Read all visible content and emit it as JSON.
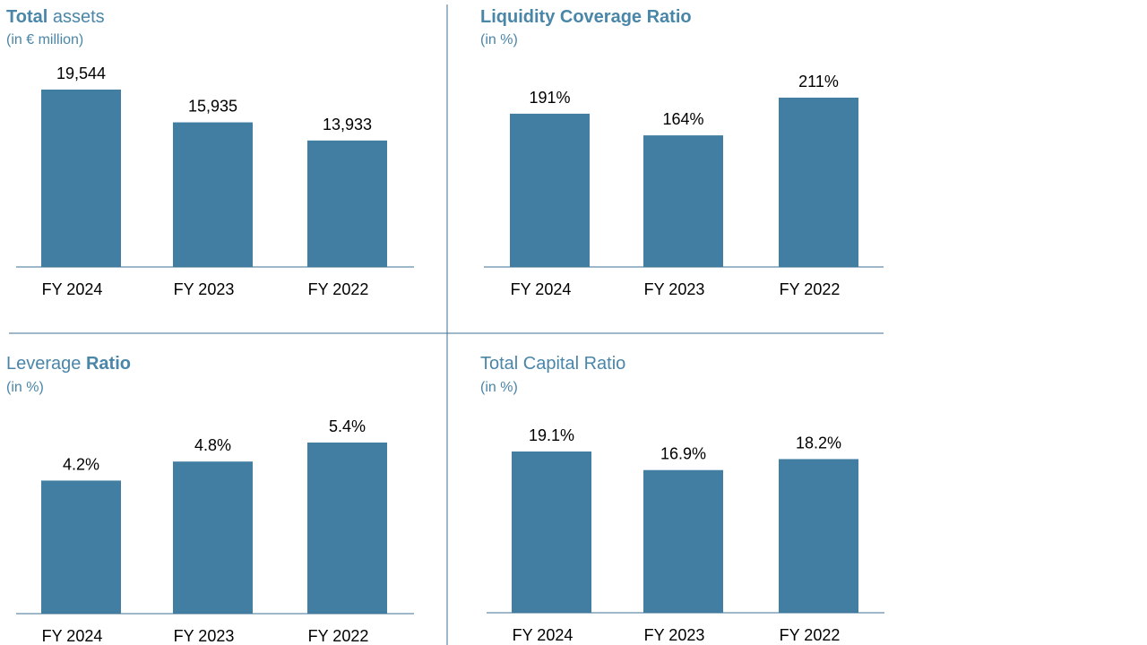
{
  "colors": {
    "bar": "#417ea1",
    "title": "#4a86a8",
    "axis": "#3e7195"
  },
  "chart_data": [
    {
      "type": "bar",
      "title_bold": "Total",
      "title_rest": " assets",
      "subtitle": "(in € million)",
      "categories": [
        "FY 2024",
        "FY 2023",
        "FY 2022"
      ],
      "values": [
        19544,
        15935,
        13933
      ],
      "value_labels": [
        "19,544",
        "15,935",
        "13,933"
      ],
      "ylim": [
        0,
        19544
      ]
    },
    {
      "type": "bar",
      "title_bold": "Liquidity Coverage Ratio",
      "title_rest": "",
      "subtitle": "(in %)",
      "categories": [
        "FY 2024",
        "FY 2023",
        "FY 2022"
      ],
      "values": [
        191,
        164,
        211
      ],
      "value_labels": [
        "191%",
        "164%",
        "211%"
      ],
      "ylim": [
        0,
        211
      ]
    },
    {
      "type": "bar",
      "title_bold": "Ratio",
      "title_rest": "Leverage ",
      "title_order": "rest-first",
      "subtitle": "(in %)",
      "categories": [
        "FY 2024",
        "FY 2023",
        "FY 2022"
      ],
      "values": [
        4.2,
        4.8,
        5.4
      ],
      "value_labels": [
        "4.2%",
        "4.8%",
        "5.4%"
      ],
      "ylim": [
        0,
        5.4
      ]
    },
    {
      "type": "bar",
      "title_bold": "",
      "title_rest": "Total Capital Ratio",
      "subtitle": "(in %)",
      "categories": [
        "FY 2024",
        "FY 2023",
        "FY 2022"
      ],
      "values": [
        19.1,
        16.9,
        18.2
      ],
      "value_labels": [
        "19.1%",
        "16.9%",
        "18.2%"
      ],
      "ylim": [
        0,
        19.1
      ]
    }
  ]
}
